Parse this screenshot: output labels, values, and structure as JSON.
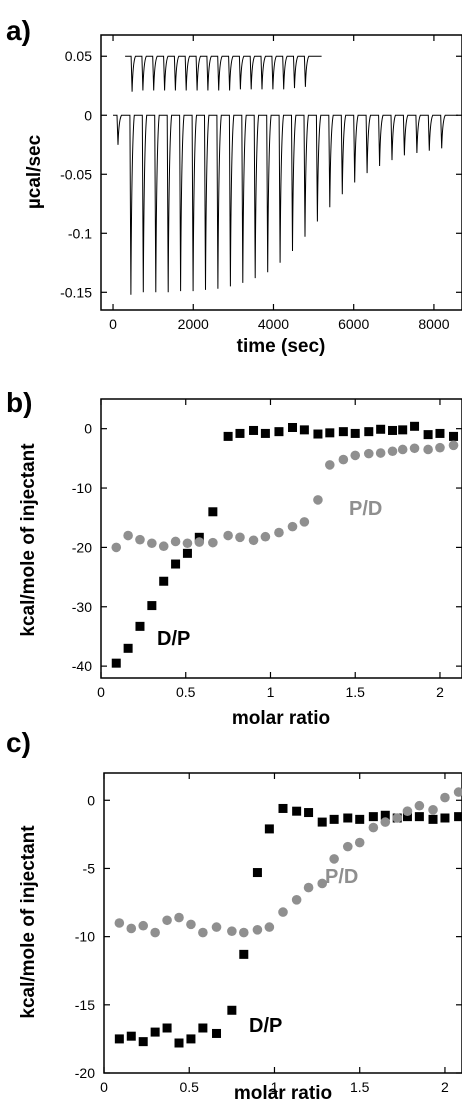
{
  "chart_data": [
    {
      "panel": "a)",
      "type": "line",
      "xlabel": "time (sec)",
      "ylabel": "µcal/sec",
      "xlim": [
        -300,
        8700
      ],
      "ylim": [
        -0.165,
        0.068
      ],
      "xticks": [
        "0",
        "2000",
        "4000",
        "6000",
        "8000"
      ],
      "yticks": [
        "0.05",
        "0",
        "-0.05",
        "-0.1",
        "-0.15"
      ],
      "series": [
        {
          "baseline": 0.05,
          "x_start": 300,
          "x_end": 5200,
          "injection_times": [
            450,
            720,
            990,
            1260,
            1530,
            1800,
            2070,
            2340,
            2610,
            2880,
            3150,
            3420,
            3690,
            3960,
            4230,
            4500,
            4770
          ],
          "peak_values": [
            0.02,
            0.021,
            0.021,
            0.021,
            0.021,
            0.021,
            0.021,
            0.021,
            0.021,
            0.021,
            0.022,
            0.022,
            0.022,
            0.022,
            0.022,
            0.023,
            0.024
          ]
        },
        {
          "baseline": 0.0,
          "x_start": 0,
          "x_end": 8600,
          "injection_times": [
            100,
            420,
            730,
            1040,
            1350,
            1660,
            1970,
            2280,
            2590,
            2900,
            3210,
            3520,
            3830,
            4140,
            4450,
            4760,
            5070,
            5380,
            5690,
            6000,
            6310,
            6620,
            6930,
            7240,
            7550,
            7860,
            8170
          ],
          "peak_values": [
            -0.025,
            -0.152,
            -0.15,
            -0.15,
            -0.15,
            -0.149,
            -0.149,
            -0.148,
            -0.147,
            -0.145,
            -0.142,
            -0.138,
            -0.133,
            -0.125,
            -0.115,
            -0.103,
            -0.09,
            -0.078,
            -0.067,
            -0.057,
            -0.049,
            -0.043,
            -0.038,
            -0.034,
            -0.032,
            -0.03,
            -0.028
          ]
        }
      ]
    },
    {
      "panel": "b)",
      "type": "scatter",
      "xlabel": "molar ratio",
      "ylabel": "kcal/mole of injectant",
      "xlim": [
        0,
        2.13
      ],
      "ylim": [
        -42,
        5
      ],
      "xticks": [
        "0",
        "0.5",
        "1",
        "1.5",
        "2"
      ],
      "yticks": [
        "0",
        "-10",
        "-20",
        "-30",
        "-40"
      ],
      "series": [
        {
          "name": "D/P",
          "marker": "square",
          "color": "#000000",
          "x": [
            0.09,
            0.16,
            0.23,
            0.3,
            0.37,
            0.44,
            0.51,
            0.58,
            0.66,
            0.75,
            0.82,
            0.9,
            0.97,
            1.05,
            1.13,
            1.2,
            1.28,
            1.35,
            1.43,
            1.5,
            1.58,
            1.65,
            1.72,
            1.78,
            1.85,
            1.93,
            2.0,
            2.08
          ],
          "y": [
            -39.5,
            -37,
            -33.3,
            -29.8,
            -25.7,
            -22.8,
            -21,
            -18.3,
            -14,
            -1.3,
            -0.8,
            -0.3,
            -0.8,
            -0.5,
            0.2,
            -0.2,
            -0.9,
            -0.7,
            -0.5,
            -0.8,
            -0.5,
            -0.1,
            -0.3,
            -0.2,
            0.4,
            -1,
            -0.8,
            -1.3
          ]
        },
        {
          "name": "P/D",
          "marker": "circle",
          "color": "#8f8f8f",
          "x": [
            0.09,
            0.16,
            0.23,
            0.3,
            0.37,
            0.44,
            0.51,
            0.58,
            0.66,
            0.75,
            0.82,
            0.9,
            0.97,
            1.05,
            1.13,
            1.2,
            1.28,
            1.35,
            1.43,
            1.5,
            1.58,
            1.65,
            1.72,
            1.78,
            1.85,
            1.93,
            2.0,
            2.08
          ],
          "y": [
            -20,
            -18,
            -18.7,
            -19.3,
            -19.8,
            -19,
            -19.3,
            -19.1,
            -19.2,
            -18,
            -18.3,
            -18.8,
            -18.2,
            -17.5,
            -16.5,
            -15.7,
            -12,
            -6.1,
            -5.2,
            -4.5,
            -4.2,
            -4.1,
            -3.8,
            -3.5,
            -3.3,
            -3.5,
            -3.2,
            -2.8
          ]
        }
      ]
    },
    {
      "panel": "c)",
      "type": "scatter",
      "xlabel": "molar ratio",
      "ylabel": "kcal/mole of injectant",
      "xlim": [
        0,
        2.1
      ],
      "ylim": [
        -20,
        2
      ],
      "xticks": [
        "0",
        "0.5",
        "1",
        "1.5",
        "2"
      ],
      "yticks": [
        "0",
        "-5",
        "-10",
        "-15",
        "-20"
      ],
      "series": [
        {
          "name": "D/P",
          "marker": "square",
          "color": "#000000",
          "x": [
            0.09,
            0.16,
            0.23,
            0.3,
            0.37,
            0.44,
            0.51,
            0.58,
            0.66,
            0.75,
            0.82,
            0.9,
            0.97,
            1.05,
            1.13,
            1.2,
            1.28,
            1.35,
            1.43,
            1.5,
            1.58,
            1.65,
            1.72,
            1.78,
            1.85,
            1.93,
            2.0,
            2.08
          ],
          "y": [
            -17.5,
            -17.3,
            -17.7,
            -17,
            -16.7,
            -17.8,
            -17.5,
            -16.7,
            -17.1,
            -15.4,
            -11.3,
            -5.3,
            -2.1,
            -0.6,
            -0.8,
            -0.9,
            -1.6,
            -1.4,
            -1.3,
            -1.4,
            -1.2,
            -1.1,
            -1.3,
            -1.2,
            -1.2,
            -1.4,
            -1.3,
            -1.2
          ]
        },
        {
          "name": "P/D",
          "marker": "circle",
          "color": "#8f8f8f",
          "x": [
            0.09,
            0.16,
            0.23,
            0.3,
            0.37,
            0.44,
            0.51,
            0.58,
            0.66,
            0.75,
            0.82,
            0.9,
            0.97,
            1.05,
            1.13,
            1.2,
            1.28,
            1.35,
            1.43,
            1.5,
            1.58,
            1.65,
            1.72,
            1.78,
            1.85,
            1.93,
            2.0,
            2.08
          ],
          "y": [
            -9,
            -9.4,
            -9.2,
            -9.7,
            -8.8,
            -8.6,
            -9.1,
            -9.7,
            -9.3,
            -9.6,
            -9.7,
            -9.5,
            -9.3,
            -8.2,
            -7.3,
            -6.4,
            -6.1,
            -4.3,
            -3.4,
            -3.1,
            -2,
            -1.6,
            -1.3,
            -0.8,
            -0.4,
            -0.7,
            0.2,
            0.6
          ]
        }
      ]
    }
  ]
}
